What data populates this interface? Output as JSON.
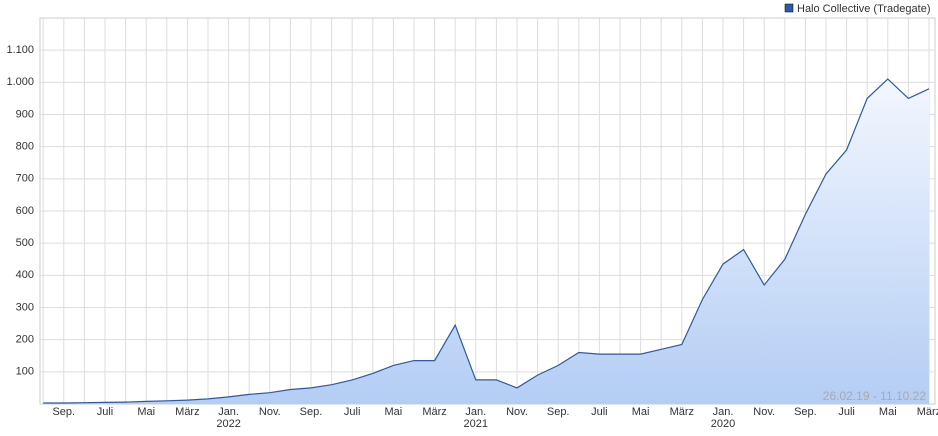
{
  "chart_data": {
    "type": "area",
    "legend": "Halo Collective (Tradegate)",
    "date_range": "26.02.19 - 11.10.22",
    "color": "#2b5aa6",
    "xreverse": true,
    "grid": true,
    "categories": [
      "März",
      null,
      "Mai",
      null,
      "Juli",
      null,
      "Sep.",
      null,
      "Nov.",
      null,
      "Jan.\n2020",
      null,
      "März",
      null,
      "Mai",
      null,
      "Juli",
      null,
      "Sep.",
      null,
      "Nov.",
      null,
      "Jan.\n2021",
      null,
      "März",
      null,
      "Mai",
      null,
      "Juli",
      null,
      "Sep.",
      null,
      "Nov.",
      null,
      "Jan.\n2022",
      null,
      "März",
      null,
      "Mai",
      null,
      "Juli",
      null,
      "Sep.",
      null
    ],
    "values": [
      980,
      950,
      1010,
      950,
      790,
      715,
      590,
      450,
      370,
      480,
      435,
      325,
      185,
      170,
      155,
      155,
      155,
      160,
      120,
      90,
      50,
      75,
      75,
      245,
      135,
      135,
      120,
      95,
      75,
      60,
      50,
      45,
      35,
      30,
      22,
      16,
      12,
      10,
      8,
      6,
      5,
      4,
      3,
      3
    ],
    "ylim": [
      0,
      1200
    ],
    "yticks": [
      100,
      200,
      300,
      400,
      500,
      600,
      700,
      800,
      900,
      {
        "value": 1000,
        "label": "1.000"
      },
      {
        "value": 1100,
        "label": "1.100"
      }
    ]
  }
}
